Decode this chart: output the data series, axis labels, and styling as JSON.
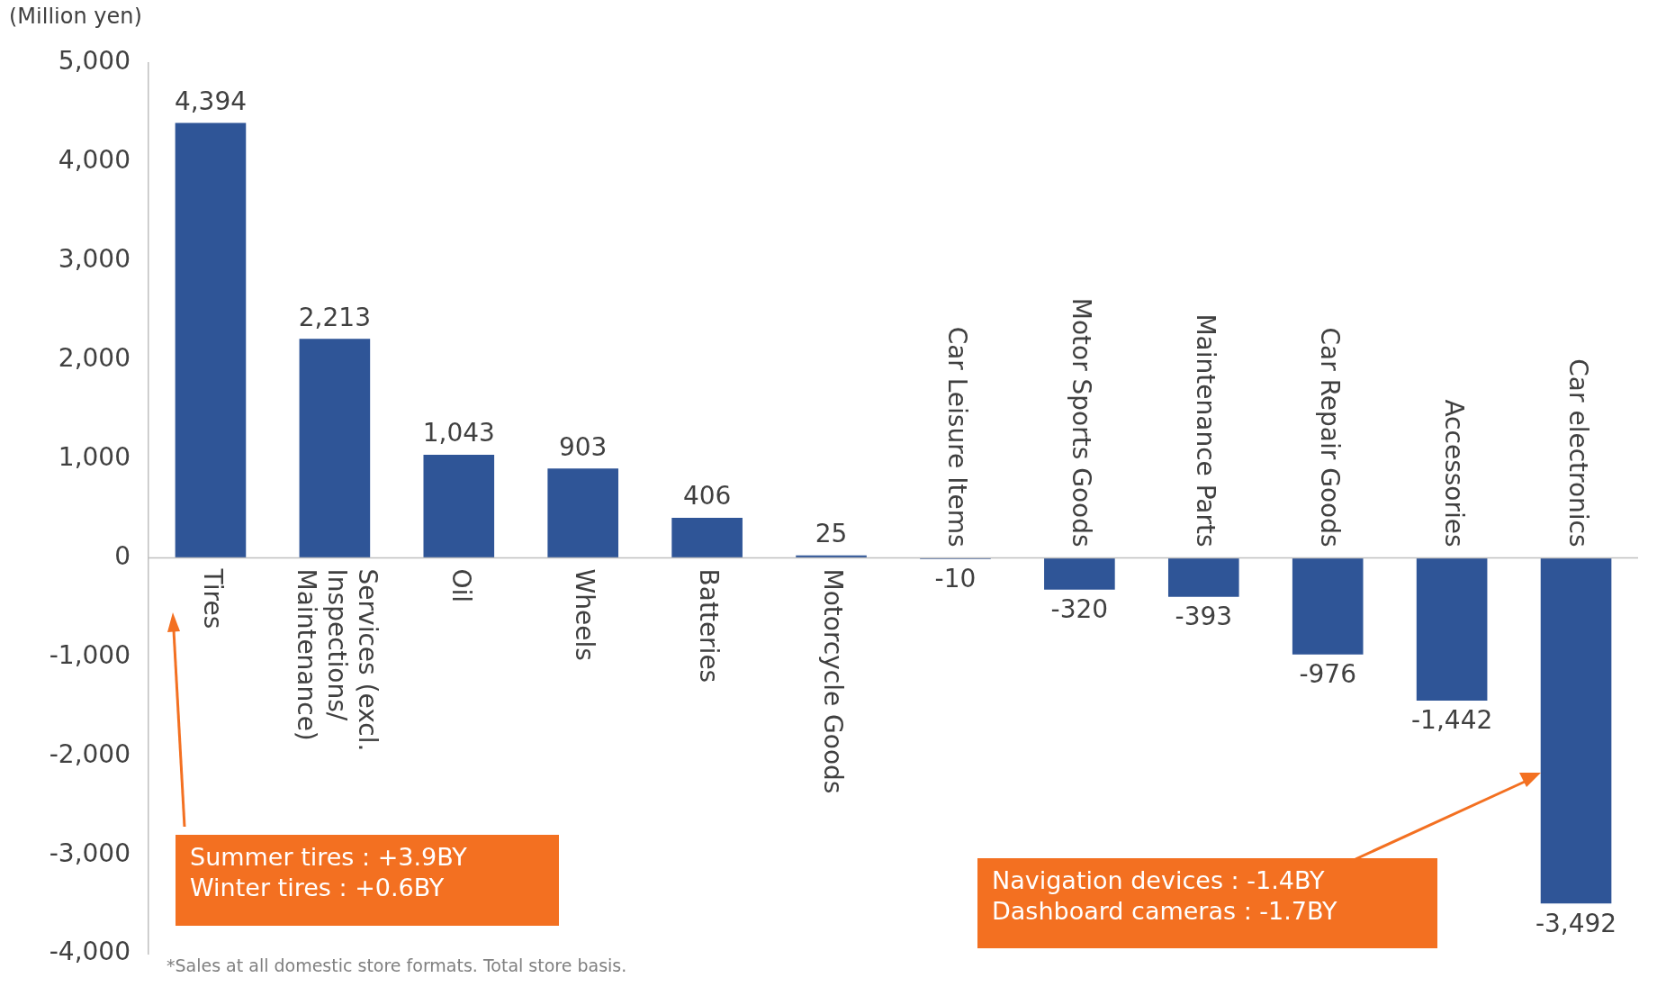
{
  "chart_data": {
    "type": "bar",
    "ylabel": "(Million yen)",
    "categories": [
      "Tires",
      "Services (excl.\nInspections/\nMaintenance)",
      "Oil",
      "Wheels",
      "Batteries",
      "Motorcycle Goods",
      "Car Leisure Items",
      "Motor Sports Goods",
      "Maintenance Parts",
      "Car Repair Goods",
      "Accessories",
      "Car electronics"
    ],
    "values": [
      4394,
      2213,
      1043,
      903,
      406,
      25,
      -10,
      -320,
      -393,
      -976,
      -1442,
      -3492
    ],
    "value_labels": [
      "4,394",
      "2,213",
      "1,043",
      "903",
      "406",
      "25",
      "-10",
      "-320",
      "-393",
      "-976",
      "-1,442",
      "-3,492"
    ],
    "color": "#2f5597",
    "ylim": [
      -4000,
      5000
    ],
    "yticks": [
      {
        "value": -4000,
        "label": "-4,000"
      },
      {
        "value": -3000,
        "label": "-3,000"
      },
      {
        "value": -2000,
        "label": "-2,000"
      },
      {
        "value": -1000,
        "label": "-1,000"
      },
      0,
      {
        "value": 1000,
        "label": "1,000"
      },
      {
        "value": 2000,
        "label": "2,000"
      },
      {
        "value": 3000,
        "label": "3,000"
      },
      {
        "value": 4000,
        "label": "4,000"
      },
      {
        "value": 5000,
        "label": "5,000"
      }
    ],
    "grid": false,
    "legend": false,
    "annotations": [
      "Summer tires : +3.9BY\nWinter tires : +0.6BY",
      "Navigation devices : -1.4BY\nDashboard cameras : -1.7BY",
      "*Sales at all domestic store formats. Total store basis."
    ]
  }
}
